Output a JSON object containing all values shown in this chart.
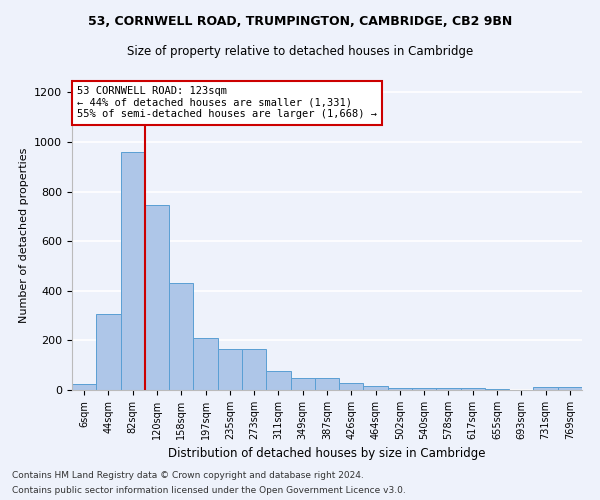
{
  "title1": "53, CORNWELL ROAD, TRUMPINGTON, CAMBRIDGE, CB2 9BN",
  "title2": "Size of property relative to detached houses in Cambridge",
  "xlabel": "Distribution of detached houses by size in Cambridge",
  "ylabel": "Number of detached properties",
  "bins": [
    "6sqm",
    "44sqm",
    "82sqm",
    "120sqm",
    "158sqm",
    "197sqm",
    "235sqm",
    "273sqm",
    "311sqm",
    "349sqm",
    "387sqm",
    "426sqm",
    "464sqm",
    "502sqm",
    "540sqm",
    "578sqm",
    "617sqm",
    "655sqm",
    "693sqm",
    "731sqm",
    "769sqm"
  ],
  "values": [
    25,
    305,
    960,
    745,
    430,
    210,
    165,
    165,
    75,
    48,
    48,
    30,
    18,
    10,
    10,
    10,
    10,
    5,
    0,
    12,
    12
  ],
  "bar_color": "#aec6e8",
  "bar_edgecolor": "#5a9fd4",
  "vline_color": "#cc0000",
  "vline_x_index": 3,
  "annotation_text": "53 CORNWELL ROAD: 123sqm\n← 44% of detached houses are smaller (1,331)\n55% of semi-detached houses are larger (1,668) →",
  "annotation_box_color": "#ffffff",
  "annotation_box_edgecolor": "#cc0000",
  "ylim": [
    0,
    1250
  ],
  "yticks": [
    0,
    200,
    400,
    600,
    800,
    1000,
    1200
  ],
  "background_color": "#eef2fb",
  "grid_color": "#ffffff",
  "footnote1": "Contains HM Land Registry data © Crown copyright and database right 2024.",
  "footnote2": "Contains public sector information licensed under the Open Government Licence v3.0."
}
